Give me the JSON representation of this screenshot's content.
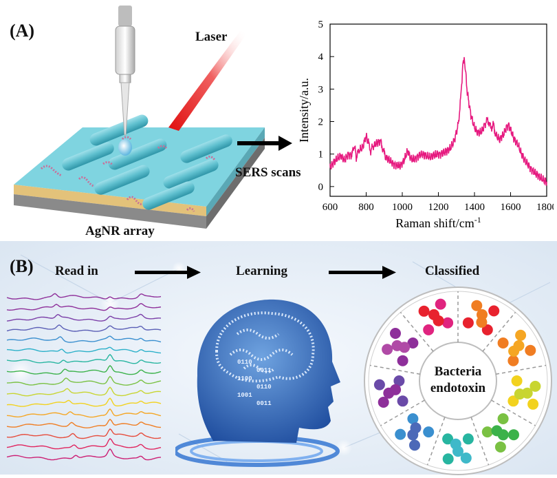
{
  "panel_a": {
    "label": "(A)",
    "laser_label": "Laser",
    "substrate_label": "AgNR array",
    "arrow_label": "SERS scans"
  },
  "panel_b": {
    "label": "(B)",
    "step1_label": "Read in",
    "step2_label": "Learning",
    "step3_label": "Classified",
    "center_label_line1": "Bacteria",
    "center_label_line2": "endotoxin",
    "binary_rows": [
      "0110",
      "0011",
      "1100",
      "0110",
      "1001",
      "0011"
    ],
    "spectra_colors": [
      "#8e2f9a",
      "#8e2f9a",
      "#7b3fa8",
      "#5b5fb6",
      "#3a8fcf",
      "#2bb0c9",
      "#27b5a0",
      "#3bb24a",
      "#7ac143",
      "#c8d531",
      "#f2d21e",
      "#f5a623",
      "#f07d22",
      "#e64c3c",
      "#e0245e",
      "#cc1f74"
    ],
    "dot_colors": [
      "#e8222e",
      "#f07d22",
      "#f5a623",
      "#f2d21e",
      "#c8d531",
      "#7ac143",
      "#3bb24a",
      "#27b5a0",
      "#3fb9c9",
      "#3a8fcf",
      "#4c69b8",
      "#6a4aa8",
      "#8e2f9a",
      "#b04aa6",
      "#e0247f"
    ]
  },
  "chart_data": {
    "type": "line",
    "title": "",
    "xlabel": "Raman shift/cm",
    "xlabel_sup": "-1",
    "ylabel": "Intensity/a.u.",
    "xlim": [
      600,
      1800
    ],
    "ylim": [
      -0.3,
      5
    ],
    "xticks": [
      600,
      800,
      1000,
      1200,
      1400,
      1600,
      1800
    ],
    "yticks": [
      0,
      1,
      2,
      3,
      4,
      5
    ],
    "color": "#e6197f",
    "series": [
      {
        "x": [
          600,
          620,
          640,
          660,
          680,
          700,
          720,
          735,
          745,
          760,
          780,
          800,
          812,
          825,
          840,
          860,
          880,
          895,
          910,
          930,
          950,
          970,
          990,
          1010,
          1030,
          1040,
          1050,
          1070,
          1090,
          1110,
          1130,
          1150,
          1170,
          1190,
          1210,
          1230,
          1250,
          1270,
          1290,
          1310,
          1325,
          1335,
          1343,
          1350,
          1360,
          1380,
          1400,
          1420,
          1440,
          1460,
          1475,
          1490,
          1505,
          1520,
          1540,
          1560,
          1580,
          1590,
          1600,
          1620,
          1640,
          1660,
          1680,
          1700,
          1720,
          1740,
          1760,
          1780,
          1800
        ],
        "y": [
          0.6,
          0.75,
          0.85,
          0.95,
          0.8,
          1.0,
          0.95,
          1.3,
          0.9,
          1.1,
          1.2,
          1.55,
          1.35,
          1.1,
          1.25,
          1.35,
          1.4,
          1.1,
          0.9,
          0.8,
          0.7,
          0.65,
          0.65,
          0.8,
          1.1,
          0.95,
          0.85,
          0.85,
          0.95,
          1.0,
          0.95,
          0.9,
          0.95,
          1.0,
          1.0,
          1.05,
          1.1,
          1.2,
          1.45,
          1.9,
          2.8,
          3.7,
          4.0,
          3.6,
          2.9,
          2.2,
          1.8,
          1.65,
          1.7,
          1.95,
          2.05,
          1.8,
          1.9,
          1.55,
          1.45,
          1.6,
          1.85,
          1.9,
          1.75,
          1.45,
          1.3,
          1.0,
          0.8,
          0.65,
          0.5,
          0.4,
          0.3,
          0.2,
          0.15
        ]
      }
    ]
  }
}
